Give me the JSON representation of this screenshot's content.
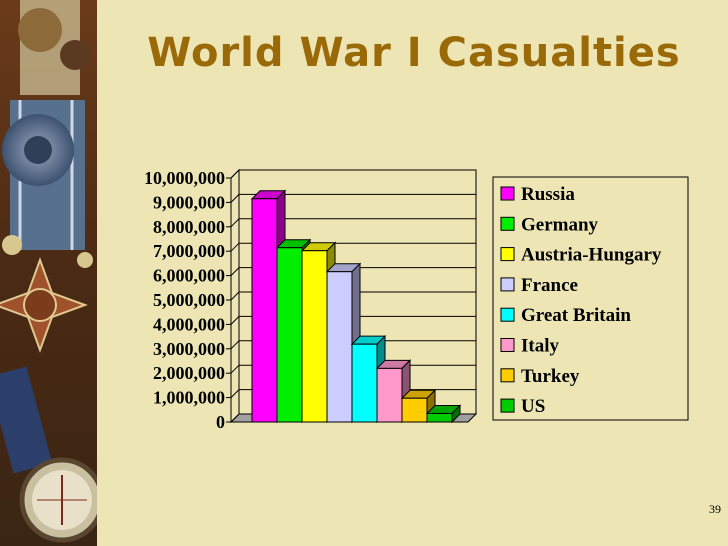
{
  "slide": {
    "title": "World War I Casualties",
    "number": "39"
  },
  "colors": {
    "background": "#ede5b4",
    "title": "#9a6a08"
  },
  "decor": {
    "sidebar_image": "military-medal-collage"
  },
  "chart_data": {
    "type": "bar",
    "style": "3d-column",
    "title": "",
    "xlabel": "",
    "ylabel": "",
    "categories": [
      "Russia",
      "Germany",
      "Austria-Hungary",
      "France",
      "Great Britain",
      "Italy",
      "Turkey",
      "US"
    ],
    "values": [
      9150000,
      7142000,
      7020000,
      6160000,
      3190000,
      2197000,
      975000,
      350000
    ],
    "colors": [
      "#ff00ff",
      "#00ee00",
      "#ffff00",
      "#ccccff",
      "#00ffff",
      "#ff99cc",
      "#ffcc00",
      "#00cc00"
    ],
    "ylim": [
      0,
      10000000
    ],
    "yticks": [
      "0",
      "1,000,000",
      "2,000,000",
      "3,000,000",
      "4,000,000",
      "5,000,000",
      "6,000,000",
      "7,000,000",
      "8,000,000",
      "9,000,000",
      "10,000,000"
    ],
    "grid": true,
    "legend_position": "right"
  }
}
